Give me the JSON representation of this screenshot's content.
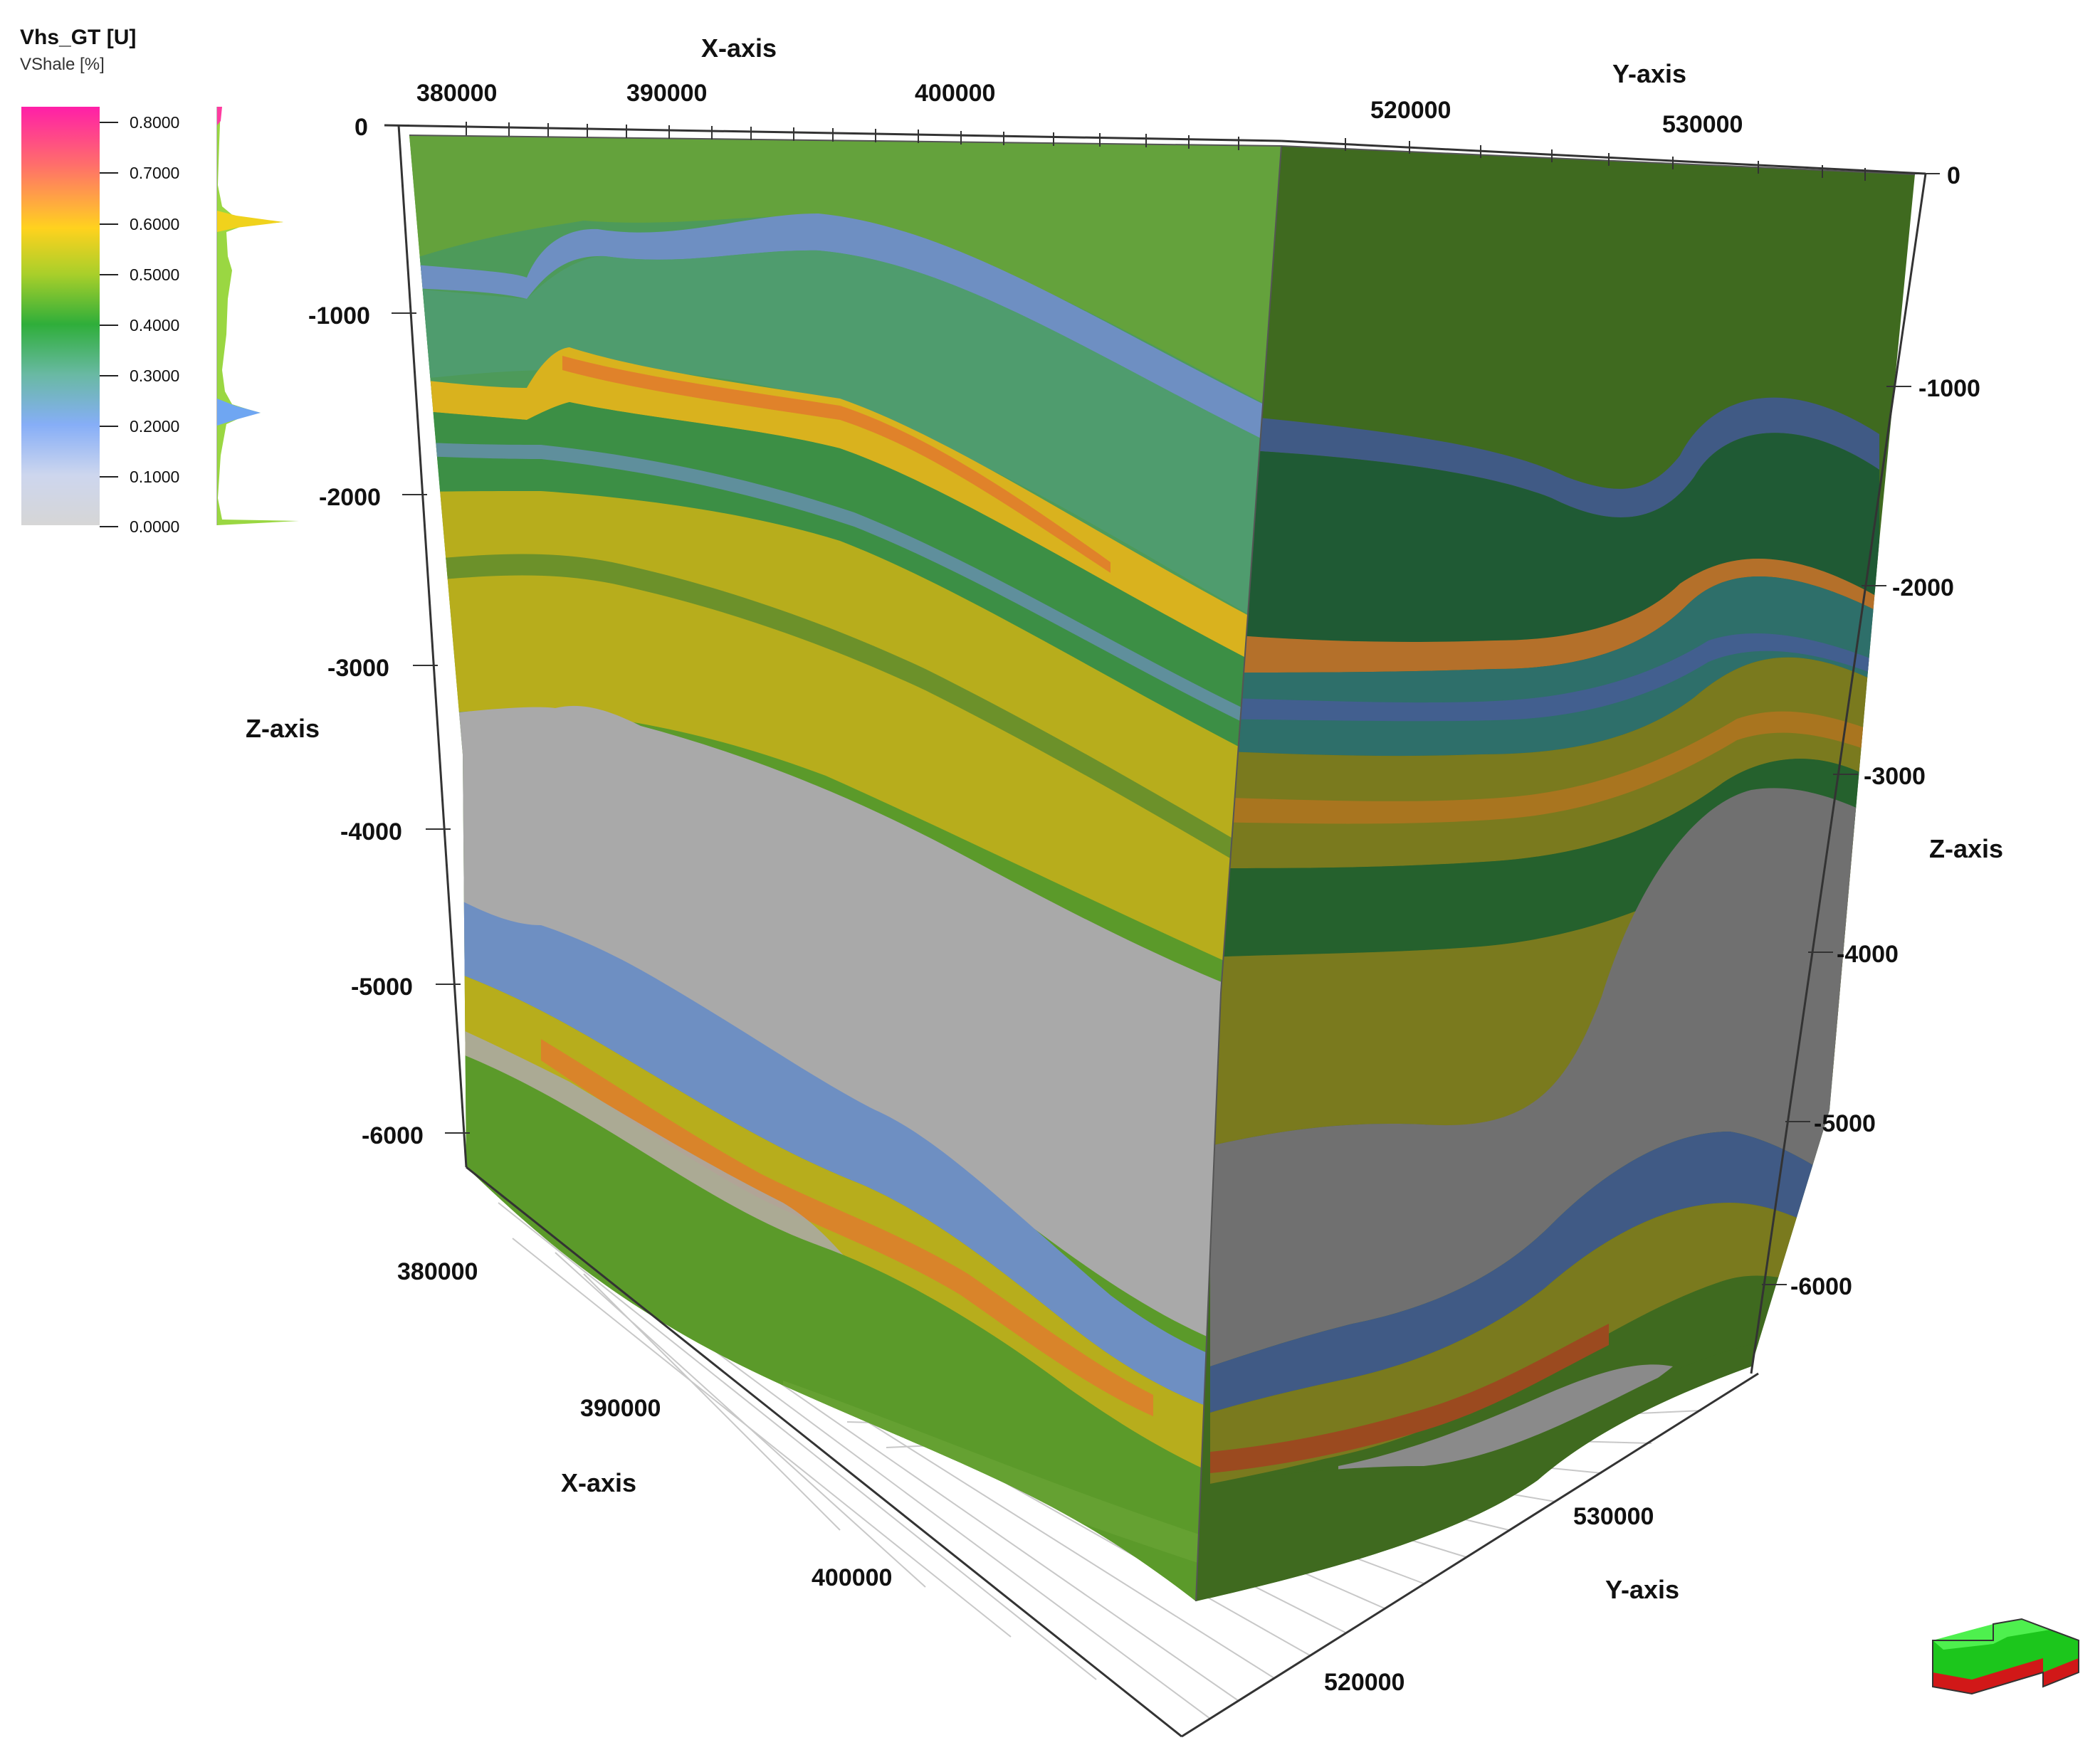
{
  "legend": {
    "title": "Vhs_GT [U]",
    "subtitle": "VShale [%]",
    "ticks": [
      "0.8000",
      "0.7000",
      "0.6000",
      "0.5000",
      "0.4000",
      "0.3000",
      "0.2000",
      "0.1000",
      "0.0000"
    ],
    "color_stops": [
      "#ff1fa8",
      "#ff7f5a",
      "#ffd21e",
      "#8ccc2a",
      "#2fae3a",
      "#69b9a3",
      "#86aef7",
      "#cdd6ee",
      "#d4d4d4"
    ]
  },
  "axes": {
    "top_x_title": "X-axis",
    "top_y_title": "Y-axis",
    "left_z_title": "Z-axis",
    "right_z_title": "Z-axis",
    "bottom_x_title": "X-axis",
    "bottom_y_title": "Y-axis",
    "top_x_ticks": [
      "380000",
      "390000",
      "400000"
    ],
    "top_y_ticks": [
      "520000",
      "530000"
    ],
    "left_z_ticks": [
      "0",
      "-1000",
      "-2000",
      "-3000",
      "-4000",
      "-5000",
      "-6000"
    ],
    "right_z_ticks": [
      "0",
      "-1000",
      "-2000",
      "-3000",
      "-4000",
      "-5000",
      "-6000"
    ],
    "bottom_x_ticks": [
      "380000",
      "390000",
      "400000"
    ],
    "bottom_y_ticks": [
      "530000",
      "520000"
    ]
  },
  "colors": {
    "green": "#5b9a2a",
    "dark_green": "#2f7a36",
    "yellow": "#b7ad1c",
    "orange": "#d9842a",
    "blue": "#6e8fc2",
    "grey": "#a9a9a9",
    "grey_dark": "#707070"
  },
  "navigation": {
    "orientation_cube_icon": "3d-orientation-arrow-icon"
  }
}
